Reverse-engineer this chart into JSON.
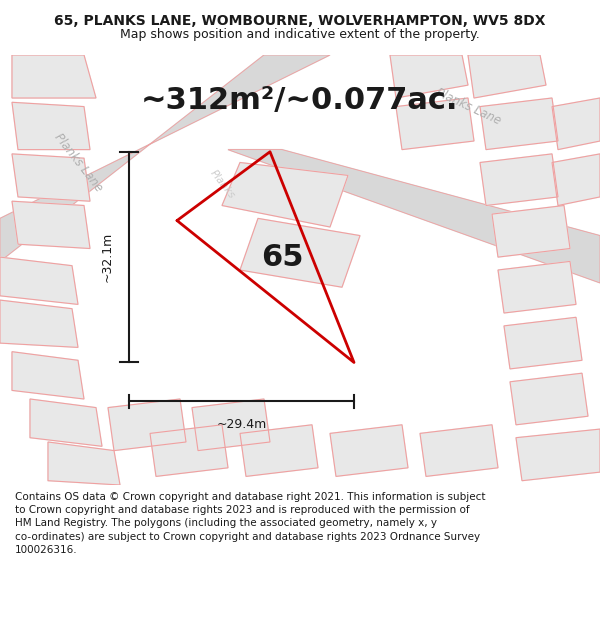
{
  "title": "65, PLANKS LANE, WOMBOURNE, WOLVERHAMPTON, WV5 8DX",
  "subtitle": "Map shows position and indicative extent of the property.",
  "area_text": "~312m²/~0.077ac.",
  "number_label": "65",
  "dim_vertical": "~32.1m",
  "dim_horizontal": "~29.4m",
  "footer": "Contains OS data © Crown copyright and database right 2021. This information is subject to Crown copyright and database rights 2023 and is reproduced with the permission of HM Land Registry. The polygons (including the associated geometry, namely x, y co-ordinates) are subject to Crown copyright and database rights 2023 Ordnance Survey 100026316.",
  "bg_color": "#ffffff",
  "property_color": "#cc0000",
  "dim_color": "#1a1a1a",
  "title_color": "#1a1a1a",
  "road_label_color": "#b0b0b0",
  "building_fill": "#e8e8e8",
  "building_edge": "#f0a0a0",
  "road_fill": "#d8d8d8",
  "road_edge": "#f0a0a0",
  "figsize": [
    6.0,
    6.25
  ],
  "dpi": 100,
  "title_fontsize": 10,
  "subtitle_fontsize": 9,
  "area_fontsize": 22,
  "number_fontsize": 22,
  "dim_fontsize": 9,
  "footer_fontsize": 7.5
}
